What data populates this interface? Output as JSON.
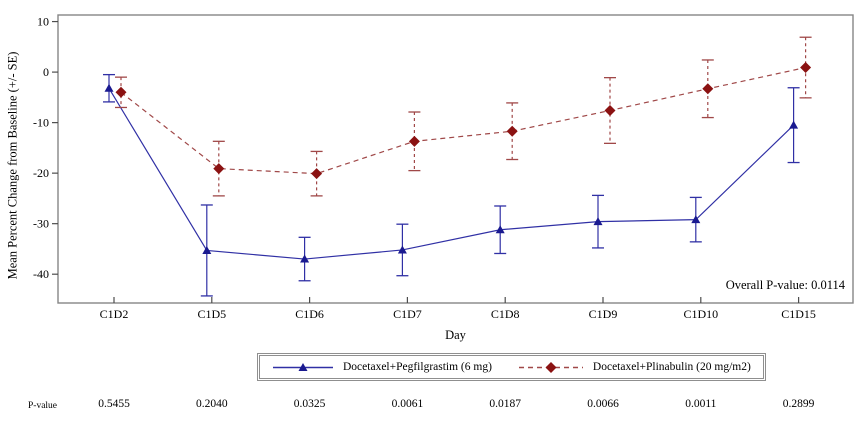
{
  "chart_data": {
    "type": "line",
    "title": "",
    "xlabel": "Day",
    "ylabel": "Mean Percent Change from Baseline (+/- SE)",
    "annotation": "Overall P-value: 0.0114",
    "categories": [
      "C1D2",
      "C1D5",
      "C1D6",
      "C1D7",
      "C1D8",
      "C1D9",
      "C1D10",
      "C1D15"
    ],
    "y_ticks": [
      10,
      0,
      -10,
      -20,
      -30,
      -40
    ],
    "ylim": [
      -45.7,
      11.3
    ],
    "grid": false,
    "legend_position": "bottom-center",
    "frame_color": "#858585",
    "series": [
      {
        "name": "Docetaxel+Pegfilgrastim (6 mg)",
        "marker": "triangle",
        "line_style": "solid",
        "color": "#3030A5",
        "marker_color": "#1A1A90",
        "values": [
          -3.2,
          -35.3,
          -37.0,
          -35.2,
          -31.2,
          -29.6,
          -29.2,
          -10.5
        ],
        "se": [
          2.7,
          9.0,
          4.3,
          5.1,
          4.7,
          5.2,
          4.4,
          7.4
        ]
      },
      {
        "name": "Docetaxel+Plinabulin (20 mg/m2)",
        "marker": "diamond",
        "line_style": "dashed",
        "color": "#A04848",
        "marker_color": "#8B1212",
        "values": [
          -4.0,
          -19.1,
          -20.1,
          -13.7,
          -11.7,
          -7.6,
          -3.3,
          0.9
        ],
        "se": [
          3.0,
          5.4,
          4.4,
          5.8,
          5.6,
          6.5,
          5.7,
          6.0
        ]
      }
    ]
  },
  "pvalue_row": {
    "label": "P-value",
    "values": [
      "0.5455",
      "0.2040",
      "0.0325",
      "0.0061",
      "0.0187",
      "0.0066",
      "0.0011",
      "0.2899"
    ]
  }
}
